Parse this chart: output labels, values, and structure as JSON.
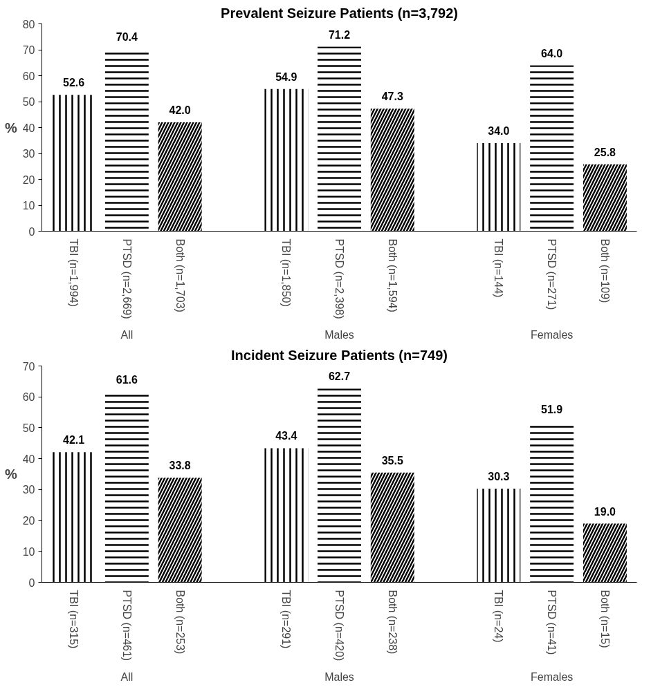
{
  "chart_data": [
    {
      "type": "bar",
      "title": "Prevalent Seizure Patients (n=3,792)",
      "ylabel": "%",
      "categories": [
        "TBI (n=1,994)",
        "PTSD (n=2,669)",
        "Both (n=1,703)",
        "TBI (n=1,850)",
        "PTSD (n=2,398)",
        "Both (n=1,594)",
        "TBI (n=144)",
        "PTSD (n=271)",
        "Both (n=109)"
      ],
      "values": [
        52.6,
        70.4,
        42.0,
        54.9,
        71.2,
        47.3,
        34.0,
        64.0,
        25.8
      ],
      "value_labels": [
        "52.6",
        "70.4",
        "42.0",
        "54.9",
        "71.2",
        "47.3",
        "34.0",
        "64.0",
        "25.8"
      ],
      "color": "#000000",
      "annotations": [
        "All",
        "Males",
        "Females"
      ],
      "ylim": [
        0,
        80
      ],
      "yticks": [
        0,
        10,
        20,
        30,
        40,
        50,
        60,
        70,
        80
      ],
      "grid": false
    },
    {
      "type": "bar",
      "title": "Incident Seizure Patients (n=749)",
      "ylabel": "%",
      "categories": [
        "TBI (n=315)",
        "PTSD (n=461)",
        "Both (n=253)",
        "TBI (n=291)",
        "PTSD (n=420)",
        "Both (n=238)",
        "TBI (n=24)",
        "PTSD (n=41)",
        "Both (n=15)"
      ],
      "values": [
        42.1,
        61.6,
        33.8,
        43.4,
        62.7,
        35.5,
        30.3,
        51.9,
        19.0
      ],
      "value_labels": [
        "42.1",
        "61.6",
        "33.8",
        "43.4",
        "62.7",
        "35.5",
        "30.3",
        "51.9",
        "19.0"
      ],
      "color": "#000000",
      "annotations": [
        "All",
        "Males",
        "Females"
      ],
      "ylim": [
        0,
        70
      ],
      "yticks": [
        0,
        10,
        20,
        30,
        40,
        50,
        60,
        70
      ],
      "grid": false
    }
  ]
}
